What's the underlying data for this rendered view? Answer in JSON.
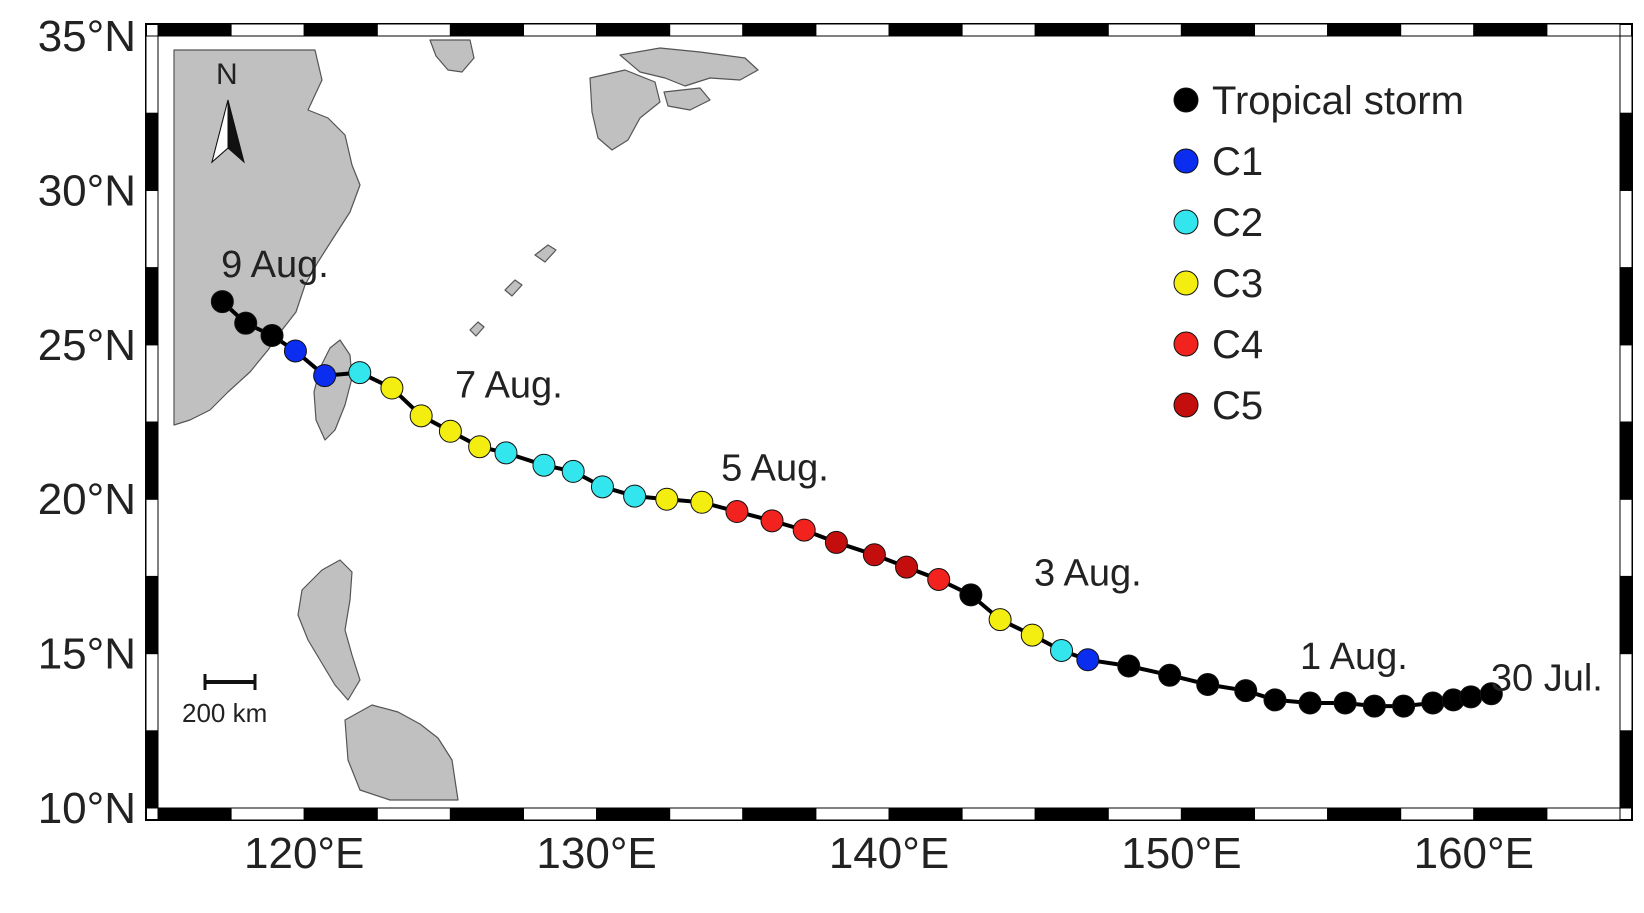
{
  "map": {
    "lat_labels": [
      "35°N",
      "30°N",
      "25°N",
      "20°N",
      "15°N",
      "10°N"
    ],
    "lon_labels": [
      "120°E",
      "130°E",
      "140°E",
      "150°E",
      "160°E"
    ],
    "lat_ticks": [
      35,
      30,
      25,
      20,
      15,
      10
    ],
    "lon_ticks": [
      120,
      130,
      140,
      150,
      160
    ],
    "extent": {
      "lon_min": 115,
      "lon_max": 165,
      "lat_min": 10,
      "lat_max": 35
    },
    "north_label": "N",
    "scale_label": "200 km",
    "colors": {
      "land": "#c0c0c0",
      "track": "#000000",
      "frame_dark": "#000000",
      "frame_light": "#ffffff"
    }
  },
  "annotations": [
    {
      "text": "9 Aug.",
      "lon": 119.0,
      "lat": 27.2
    },
    {
      "text": "7 Aug.",
      "lon": 127.0,
      "lat": 23.3
    },
    {
      "text": "5 Aug.",
      "lon": 136.1,
      "lat": 20.6
    },
    {
      "text": "3 Aug.",
      "lon": 146.8,
      "lat": 17.2
    },
    {
      "text": "1 Aug.",
      "lon": 155.9,
      "lat": 14.5
    },
    {
      "text": "30 Jul.",
      "lon": 162.5,
      "lat": 13.8
    }
  ],
  "legend": [
    {
      "key": "TS",
      "label": "Tropical storm",
      "color": "#000000"
    },
    {
      "key": "C1",
      "label": "C1",
      "color": "#0b2df0"
    },
    {
      "key": "C2",
      "label": "C2",
      "color": "#33e6ee"
    },
    {
      "key": "C3",
      "label": "C3",
      "color": "#f4ee10"
    },
    {
      "key": "C4",
      "label": "C4",
      "color": "#f2221e"
    },
    {
      "key": "C5",
      "label": "C5",
      "color": "#c40e0e"
    }
  ],
  "track": [
    {
      "lon": 117.2,
      "lat": 26.4,
      "cat": "TS"
    },
    {
      "lon": 118.0,
      "lat": 25.7,
      "cat": "TS"
    },
    {
      "lon": 118.9,
      "lat": 25.3,
      "cat": "TS"
    },
    {
      "lon": 119.7,
      "lat": 24.8,
      "cat": "C1"
    },
    {
      "lon": 120.7,
      "lat": 24.0,
      "cat": "C1"
    },
    {
      "lon": 121.9,
      "lat": 24.1,
      "cat": "C2"
    },
    {
      "lon": 123.0,
      "lat": 23.6,
      "cat": "C3"
    },
    {
      "lon": 124.0,
      "lat": 22.7,
      "cat": "C3"
    },
    {
      "lon": 125.0,
      "lat": 22.2,
      "cat": "C3"
    },
    {
      "lon": 126.0,
      "lat": 21.7,
      "cat": "C3"
    },
    {
      "lon": 126.9,
      "lat": 21.5,
      "cat": "C2"
    },
    {
      "lon": 128.2,
      "lat": 21.1,
      "cat": "C2"
    },
    {
      "lon": 129.2,
      "lat": 20.9,
      "cat": "C2"
    },
    {
      "lon": 130.2,
      "lat": 20.4,
      "cat": "C2"
    },
    {
      "lon": 131.3,
      "lat": 20.1,
      "cat": "C2"
    },
    {
      "lon": 132.4,
      "lat": 20.0,
      "cat": "C3"
    },
    {
      "lon": 133.6,
      "lat": 19.9,
      "cat": "C3"
    },
    {
      "lon": 134.8,
      "lat": 19.6,
      "cat": "C4"
    },
    {
      "lon": 136.0,
      "lat": 19.3,
      "cat": "C4"
    },
    {
      "lon": 137.1,
      "lat": 19.0,
      "cat": "C4"
    },
    {
      "lon": 138.2,
      "lat": 18.6,
      "cat": "C5"
    },
    {
      "lon": 139.5,
      "lat": 18.2,
      "cat": "C5"
    },
    {
      "lon": 140.6,
      "lat": 17.8,
      "cat": "C5"
    },
    {
      "lon": 141.7,
      "lat": 17.4,
      "cat": "C4"
    },
    {
      "lon": 142.8,
      "lat": 16.9,
      "cat": "TS"
    },
    {
      "lon": 143.8,
      "lat": 16.1,
      "cat": "C3"
    },
    {
      "lon": 144.9,
      "lat": 15.6,
      "cat": "C3"
    },
    {
      "lon": 145.9,
      "lat": 15.1,
      "cat": "C2"
    },
    {
      "lon": 146.8,
      "lat": 14.8,
      "cat": "C1"
    },
    {
      "lon": 148.2,
      "lat": 14.6,
      "cat": "TS"
    },
    {
      "lon": 149.6,
      "lat": 14.3,
      "cat": "TS"
    },
    {
      "lon": 150.9,
      "lat": 14.0,
      "cat": "TS"
    },
    {
      "lon": 152.2,
      "lat": 13.8,
      "cat": "TS"
    },
    {
      "lon": 153.2,
      "lat": 13.5,
      "cat": "TS"
    },
    {
      "lon": 154.4,
      "lat": 13.4,
      "cat": "TS"
    },
    {
      "lon": 155.6,
      "lat": 13.4,
      "cat": "TS"
    },
    {
      "lon": 156.6,
      "lat": 13.3,
      "cat": "TS"
    },
    {
      "lon": 157.6,
      "lat": 13.3,
      "cat": "TS"
    },
    {
      "lon": 158.6,
      "lat": 13.4,
      "cat": "TS"
    },
    {
      "lon": 159.3,
      "lat": 13.5,
      "cat": "TS"
    },
    {
      "lon": 159.9,
      "lat": 13.6,
      "cat": "TS"
    },
    {
      "lon": 160.6,
      "lat": 13.7,
      "cat": "TS"
    }
  ]
}
